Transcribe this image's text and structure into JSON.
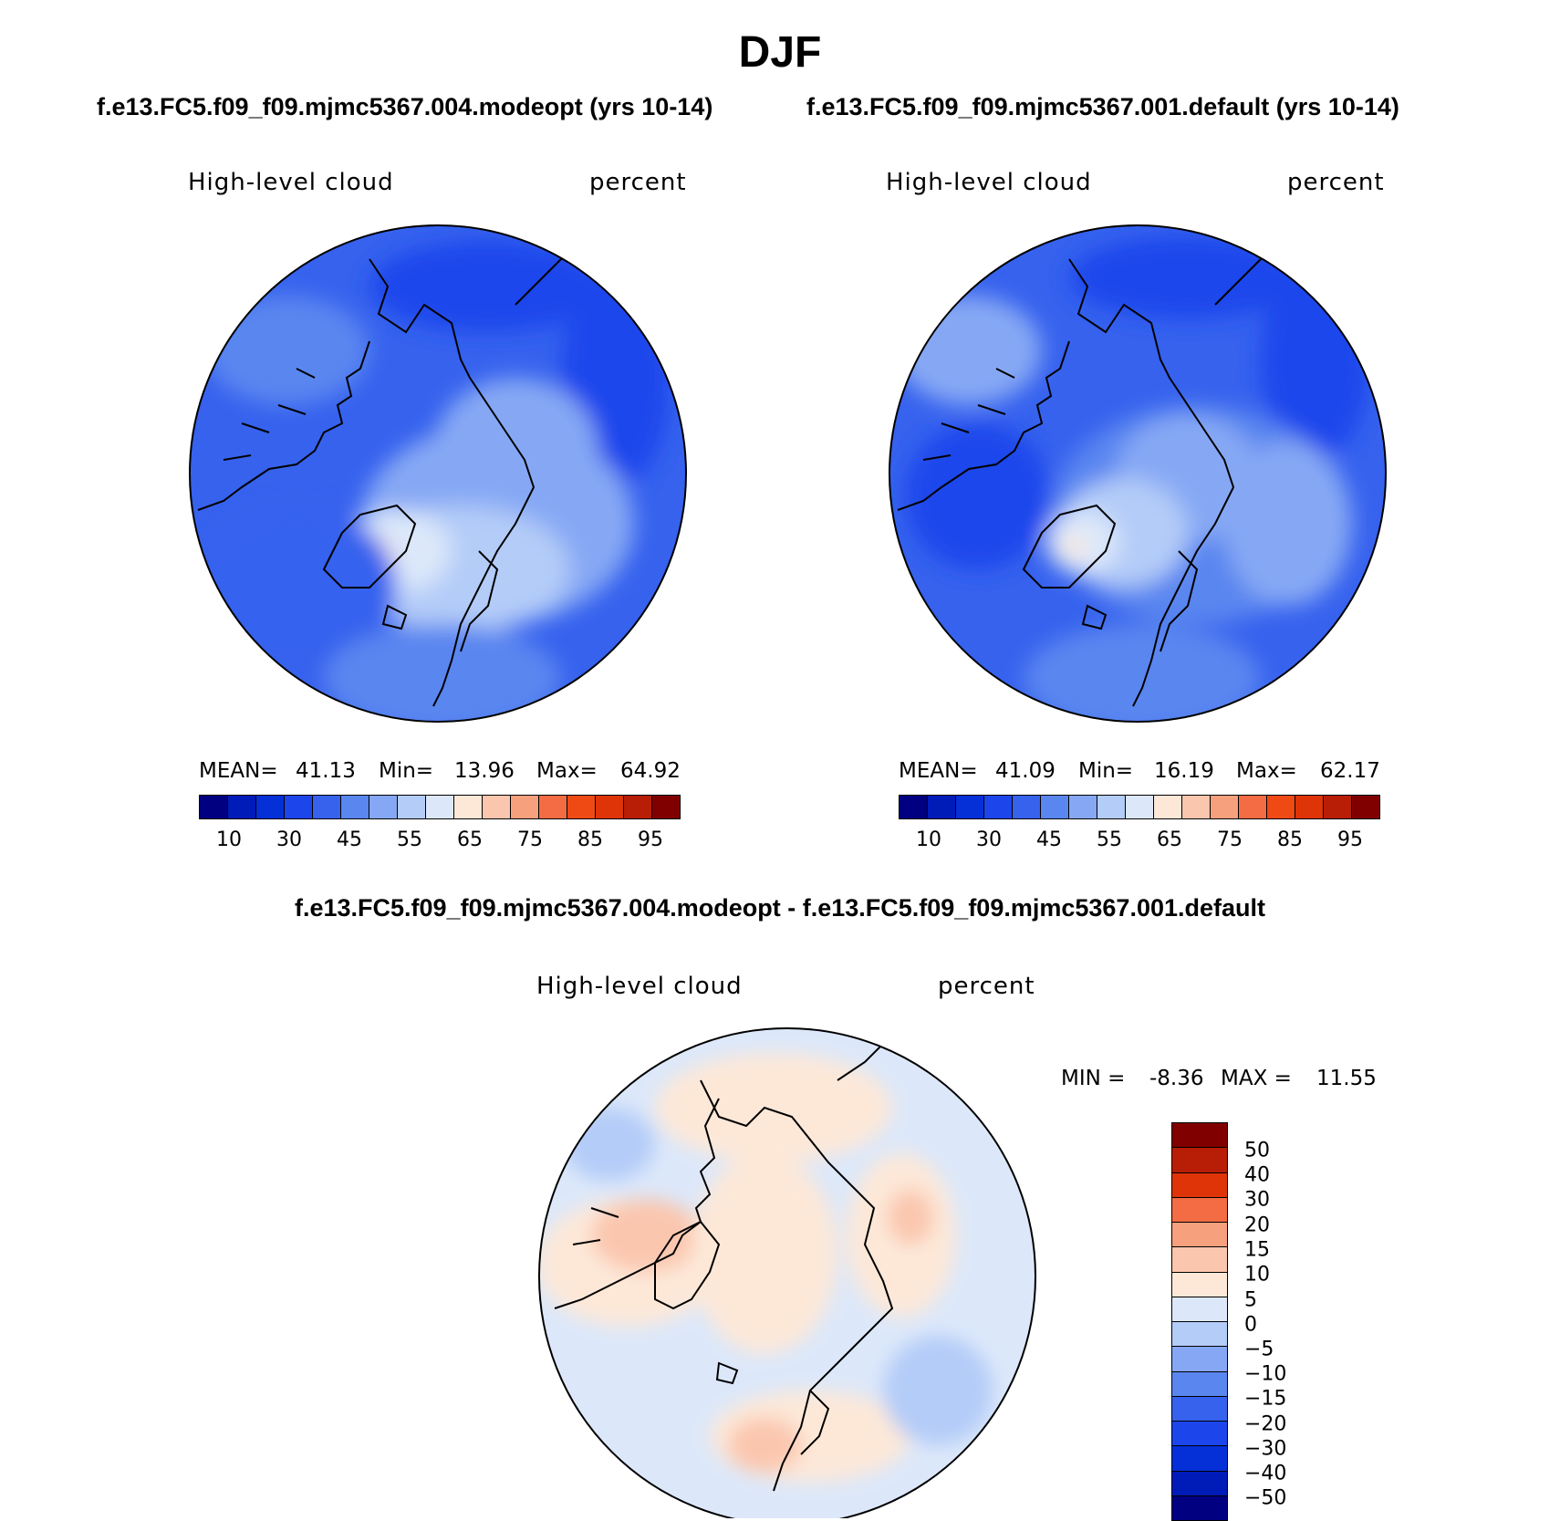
{
  "title": "DJF",
  "case_a_title": "f.e13.FC5.f09_f09.mjmc5367.004.modeopt (yrs 10-14)",
  "case_b_title": "f.e13.FC5.f09_f09.mjmc5367.001.default (yrs 10-14)",
  "diff_title": "f.e13.FC5.f09_f09.mjmc5367.004.modeopt - f.e13.FC5.f09_f09.mjmc5367.001.default",
  "colors": {
    "abs_palette": [
      "#000080",
      "#001cb8",
      "#0530d8",
      "#1c46ec",
      "#3662ee",
      "#5a86f0",
      "#86a8f4",
      "#b4ccf8",
      "#dce8fa",
      "#fde8d8",
      "#fbc6ae",
      "#f7a07e",
      "#f36c44",
      "#f04a14",
      "#de3408",
      "#b81e06",
      "#800000"
    ],
    "diff_palette": [
      "#800000",
      "#b81e06",
      "#de3408",
      "#f36c44",
      "#f7a07e",
      "#fbc6ae",
      "#fde8d8",
      "#dce8fa",
      "#b4ccf8",
      "#86a8f4",
      "#5a86f0",
      "#3662ee",
      "#1c46ec",
      "#0530d8",
      "#001cb8",
      "#000080"
    ]
  },
  "chart_data": [
    {
      "type": "heatmap",
      "panel": "case_a",
      "variable": "High-level cloud",
      "units": "percent",
      "projection": "north polar stereographic",
      "stats": {
        "mean_label": "MEAN=",
        "mean": "41.13",
        "min_label": "Min=",
        "min": "13.96",
        "max_label": "Max=",
        "max": "64.92"
      },
      "colorbar_tick_labels": [
        "10",
        "30",
        "45",
        "55",
        "65",
        "75",
        "85",
        "95"
      ],
      "contour_levels": [
        5,
        10,
        15,
        20,
        25,
        30,
        35,
        40,
        45,
        50,
        55,
        60,
        65,
        70,
        75,
        80,
        85,
        90,
        95
      ]
    },
    {
      "type": "heatmap",
      "panel": "case_b",
      "variable": "High-level cloud",
      "units": "percent",
      "projection": "north polar stereographic",
      "stats": {
        "mean_label": "MEAN=",
        "mean": "41.09",
        "min_label": "Min=",
        "min": "16.19",
        "max_label": "Max=",
        "max": "62.17"
      },
      "colorbar_tick_labels": [
        "10",
        "30",
        "45",
        "55",
        "65",
        "75",
        "85",
        "95"
      ],
      "contour_levels": [
        5,
        10,
        15,
        20,
        25,
        30,
        35,
        40,
        45,
        50,
        55,
        60,
        65,
        70,
        75,
        80,
        85,
        90,
        95
      ]
    },
    {
      "type": "heatmap",
      "panel": "difference",
      "variable": "High-level cloud",
      "units": "percent",
      "projection": "north polar stereographic",
      "stats": {
        "min_label": "MIN =",
        "min": "-8.36",
        "max_label": "MAX =",
        "max": "11.55"
      },
      "colorbar_tick_labels": [
        "50",
        "40",
        "30",
        "20",
        "15",
        "10",
        "5",
        "0",
        "−5",
        "−10",
        "−15",
        "−20",
        "−30",
        "−40",
        "−50"
      ],
      "contour_levels": [
        50,
        40,
        30,
        20,
        15,
        10,
        5,
        0,
        -5,
        -10,
        -15,
        -20,
        -30,
        -40,
        -50
      ]
    }
  ]
}
